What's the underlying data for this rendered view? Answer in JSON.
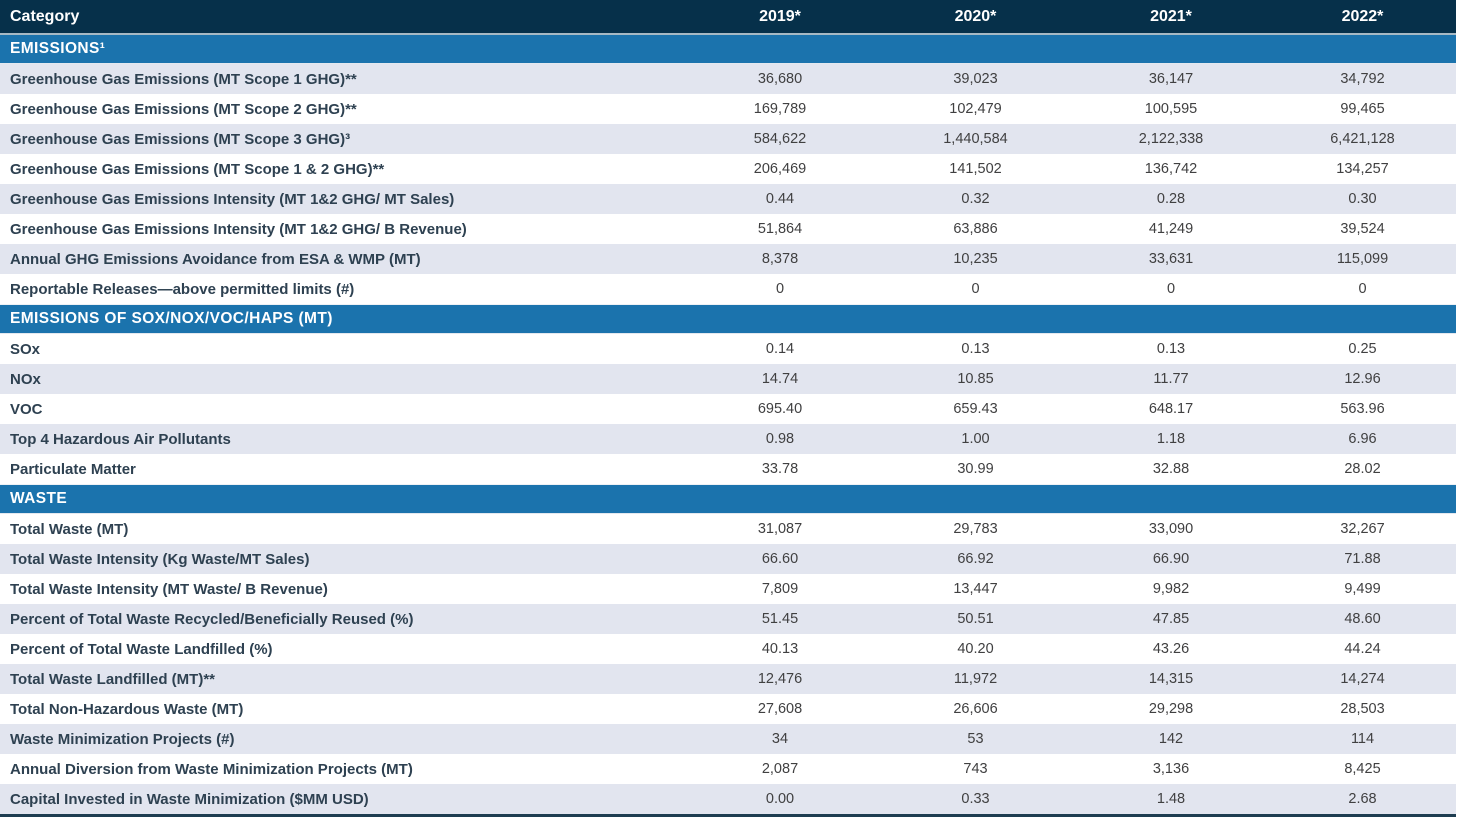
{
  "table": {
    "columns": [
      "Category",
      "2019*",
      "2020*",
      "2021*",
      "2022*"
    ],
    "colors": {
      "header_bg": "#06304a",
      "section_bg": "#1b73ad",
      "shaded_row_bg": "#e2e5ef",
      "plain_row_bg": "#ffffff",
      "label_text": "#2e4151",
      "value_text": "#404041",
      "header_text": "#ffffff",
      "bottom_border": "#1e3d51"
    },
    "sections": [
      {
        "title": "EMISSIONS¹",
        "rows_start_shaded": true,
        "rows": [
          {
            "label": "Greenhouse Gas Emissions (MT Scope 1 GHG)**",
            "values": [
              "36,680",
              "39,023",
              "36,147",
              "34,792"
            ]
          },
          {
            "label": "Greenhouse Gas Emissions (MT Scope 2 GHG)**",
            "values": [
              "169,789",
              "102,479",
              "100,595",
              "99,465"
            ]
          },
          {
            "label": "Greenhouse Gas Emissions (MT Scope 3 GHG)³",
            "values": [
              "584,622",
              "1,440,584",
              "2,122,338",
              "6,421,128"
            ]
          },
          {
            "label": "Greenhouse Gas Emissions (MT Scope 1 & 2 GHG)**",
            "values": [
              "206,469",
              "141,502",
              "136,742",
              "134,257"
            ]
          },
          {
            "label": "Greenhouse Gas Emissions Intensity (MT 1&2 GHG/ MT Sales)",
            "values": [
              "0.44",
              "0.32",
              "0.28",
              "0.30"
            ]
          },
          {
            "label": "Greenhouse Gas Emissions Intensity (MT 1&2 GHG/ B Revenue)",
            "values": [
              "51,864",
              "63,886",
              "41,249",
              "39,524"
            ]
          },
          {
            "label": "Annual GHG Emissions Avoidance from ESA & WMP (MT)",
            "values": [
              "8,378",
              "10,235",
              "33,631",
              "115,099"
            ]
          },
          {
            "label": "Reportable Releases—above permitted limits (#)",
            "values": [
              "0",
              "0",
              "0",
              "0"
            ]
          }
        ]
      },
      {
        "title": "EMISSIONS OF SOX/NOX/VOC/HAPS (MT)",
        "rows_start_shaded": false,
        "rows": [
          {
            "label": "SOx",
            "values": [
              "0.14",
              "0.13",
              "0.13",
              "0.25"
            ]
          },
          {
            "label": "NOx",
            "values": [
              "14.74",
              "10.85",
              "11.77",
              "12.96"
            ]
          },
          {
            "label": "VOC",
            "values": [
              "695.40",
              "659.43",
              "648.17",
              "563.96"
            ]
          },
          {
            "label": "Top 4 Hazardous Air Pollutants",
            "values": [
              "0.98",
              "1.00",
              "1.18",
              "6.96"
            ]
          },
          {
            "label": "Particulate Matter",
            "values": [
              "33.78",
              "30.99",
              "32.88",
              "28.02"
            ]
          }
        ]
      },
      {
        "title": "WASTE",
        "rows_start_shaded": false,
        "rows": [
          {
            "label": "Total Waste (MT)",
            "values": [
              "31,087",
              "29,783",
              "33,090",
              "32,267"
            ]
          },
          {
            "label": "Total Waste Intensity (Kg Waste/MT Sales)",
            "values": [
              "66.60",
              "66.92",
              "66.90",
              "71.88"
            ]
          },
          {
            "label": "Total Waste Intensity (MT Waste/ B Revenue)",
            "values": [
              "7,809",
              "13,447",
              "9,982",
              "9,499"
            ]
          },
          {
            "label": "Percent of Total Waste Recycled/Beneficially Reused (%)",
            "values": [
              "51.45",
              "50.51",
              "47.85",
              "48.60"
            ]
          },
          {
            "label": "Percent of Total Waste Landfilled (%)",
            "values": [
              "40.13",
              "40.20",
              "43.26",
              "44.24"
            ]
          },
          {
            "label": "Total Waste Landfilled (MT)**",
            "values": [
              "12,476",
              "11,972",
              "14,315",
              "14,274"
            ]
          },
          {
            "label": "Total Non-Hazardous Waste (MT)",
            "values": [
              "27,608",
              "26,606",
              "29,298",
              "28,503"
            ]
          },
          {
            "label": "Waste Minimization Projects (#)",
            "values": [
              "34",
              "53",
              "142",
              "114"
            ]
          },
          {
            "label": "Annual Diversion from Waste Minimization Projects (MT)",
            "values": [
              "2,087",
              "743",
              "3,136",
              "8,425"
            ]
          },
          {
            "label": "Capital Invested in Waste Minimization ($MM USD)",
            "values": [
              "0.00",
              "0.33",
              "1.48",
              "2.68"
            ]
          }
        ]
      }
    ]
  }
}
